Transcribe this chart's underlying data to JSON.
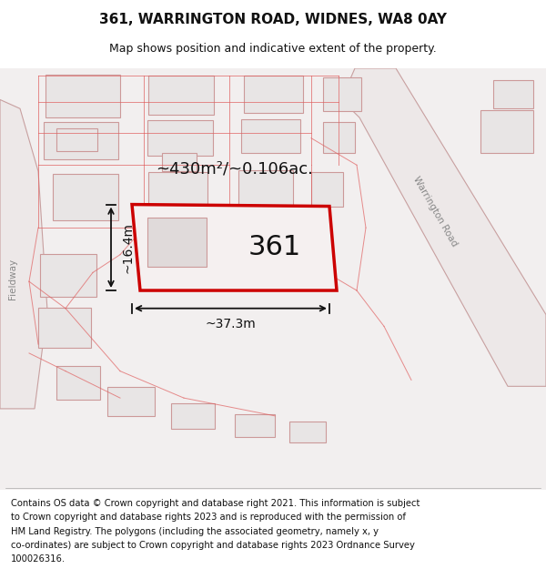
{
  "title": "361, WARRINGTON ROAD, WIDNES, WA8 0AY",
  "subtitle": "Map shows position and indicative extent of the property.",
  "footer_lines": [
    "Contains OS data © Crown copyright and database right 2021. This information is subject",
    "to Crown copyright and database rights 2023 and is reproduced with the permission of",
    "HM Land Registry. The polygons (including the associated geometry, namely x, y",
    "co-ordinates) are subject to Crown copyright and database rights 2023 Ordnance Survey",
    "100026316."
  ],
  "area_label": "~430m²/~0.106ac.",
  "width_label": "~37.3m",
  "height_label": "~16.4m",
  "plot_number": "361",
  "map_bg": "#f2efef",
  "highlight_color": "#cc0000",
  "dim_line_color": "#111111",
  "title_fontsize": 11,
  "subtitle_fontsize": 9,
  "footer_fontsize": 7.2,
  "road_label_color": "#888888",
  "building_fc": "#e8e5e5",
  "building_ec": "#cc9999",
  "red_line_color": "#e06060",
  "warrington_road_label": "Warrington Road",
  "fieldway_label": "Fieldway"
}
